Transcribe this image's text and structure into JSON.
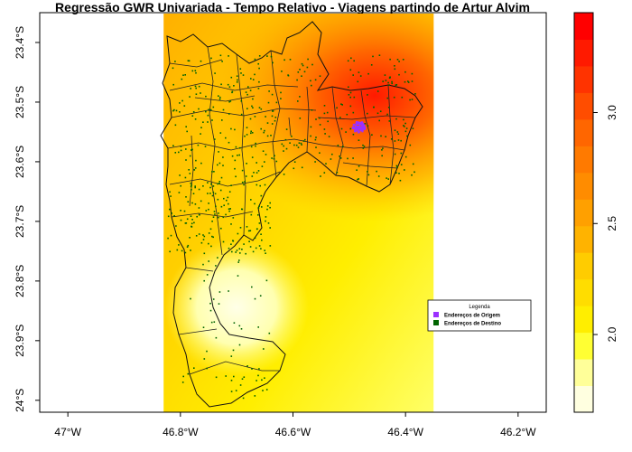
{
  "title": "Regressão GWR Univariada - Tempo Relativo - Viagens partindo de Artur Alvim",
  "x_ticks": [
    "47°W",
    "46.8°W",
    "46.6°W",
    "46.4°W",
    "46.2°W"
  ],
  "y_ticks": [
    "23.4°S",
    "23.5°S",
    "23.6°S",
    "23.7°S",
    "23.8°S",
    "23.9°S",
    "24°S"
  ],
  "legend": {
    "title": "Legenda",
    "origin_label": "Endereços de Origem",
    "destination_label": "Endereços de Destino",
    "origin_color": "#9b30ff",
    "destination_color": "#006400"
  },
  "colorbar": {
    "ticks": [
      "2.0",
      "2.5",
      "3.0"
    ],
    "colors": [
      "#ffffe0",
      "#ffff99",
      "#ffff33",
      "#ffee00",
      "#ffdd00",
      "#ffcc00",
      "#ffb300",
      "#ffa000",
      "#ff8c00",
      "#ff7a00",
      "#ff6600",
      "#ff4d00",
      "#ff3300",
      "#ff1a00",
      "#ff0000"
    ]
  },
  "chart_data": {
    "type": "heatmap",
    "title": "Regressão GWR Univariada - Tempo Relativo - Viagens partindo de Artur Alvim",
    "xlim": [
      -47.05,
      -46.15
    ],
    "ylim": [
      -24.02,
      -23.35
    ],
    "x_ticks": [
      -47.0,
      -46.8,
      -46.6,
      -46.4,
      -46.2
    ],
    "y_ticks": [
      -23.4,
      -23.5,
      -23.6,
      -23.7,
      -23.8,
      -23.9,
      -24.0
    ],
    "value_range": [
      1.65,
      3.45
    ],
    "colorbar_ticks": [
      2.0,
      2.5,
      3.0
    ],
    "raster_extent_lon": [
      -46.83,
      -46.35
    ],
    "origin_point": [
      -46.485,
      -23.54
    ],
    "legend_placement": "bottom-right"
  }
}
